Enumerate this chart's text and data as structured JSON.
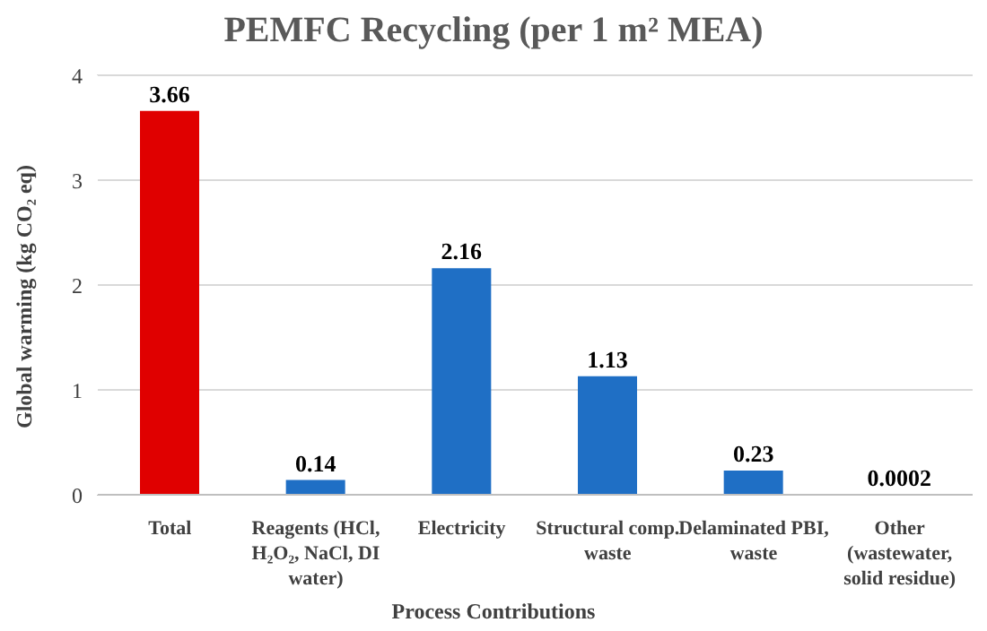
{
  "chart_data": {
    "type": "bar",
    "title": "PEMFC Recycling (per 1 m² MEA)",
    "xlabel": "Process Contributions",
    "ylabel": "Global warming (kg CO₂ eq)",
    "categories": [
      "Total",
      "Reagents (HCl, H₂O₂, NaCl, DI water)",
      "Electricity",
      "Structural comp. waste",
      "Delaminated PBI, waste",
      "Other (wastewater, solid residue)"
    ],
    "values": [
      3.66,
      0.14,
      2.16,
      1.13,
      0.23,
      0.0002
    ],
    "colors": [
      "#e00000",
      "#1f6fc5",
      "#1f6fc5",
      "#1f6fc5",
      "#1f6fc5",
      "#1f6fc5"
    ],
    "ylim": [
      0,
      4
    ],
    "yticks": [
      0,
      1,
      2,
      3,
      4
    ],
    "grid": "y",
    "data_labels": true
  }
}
